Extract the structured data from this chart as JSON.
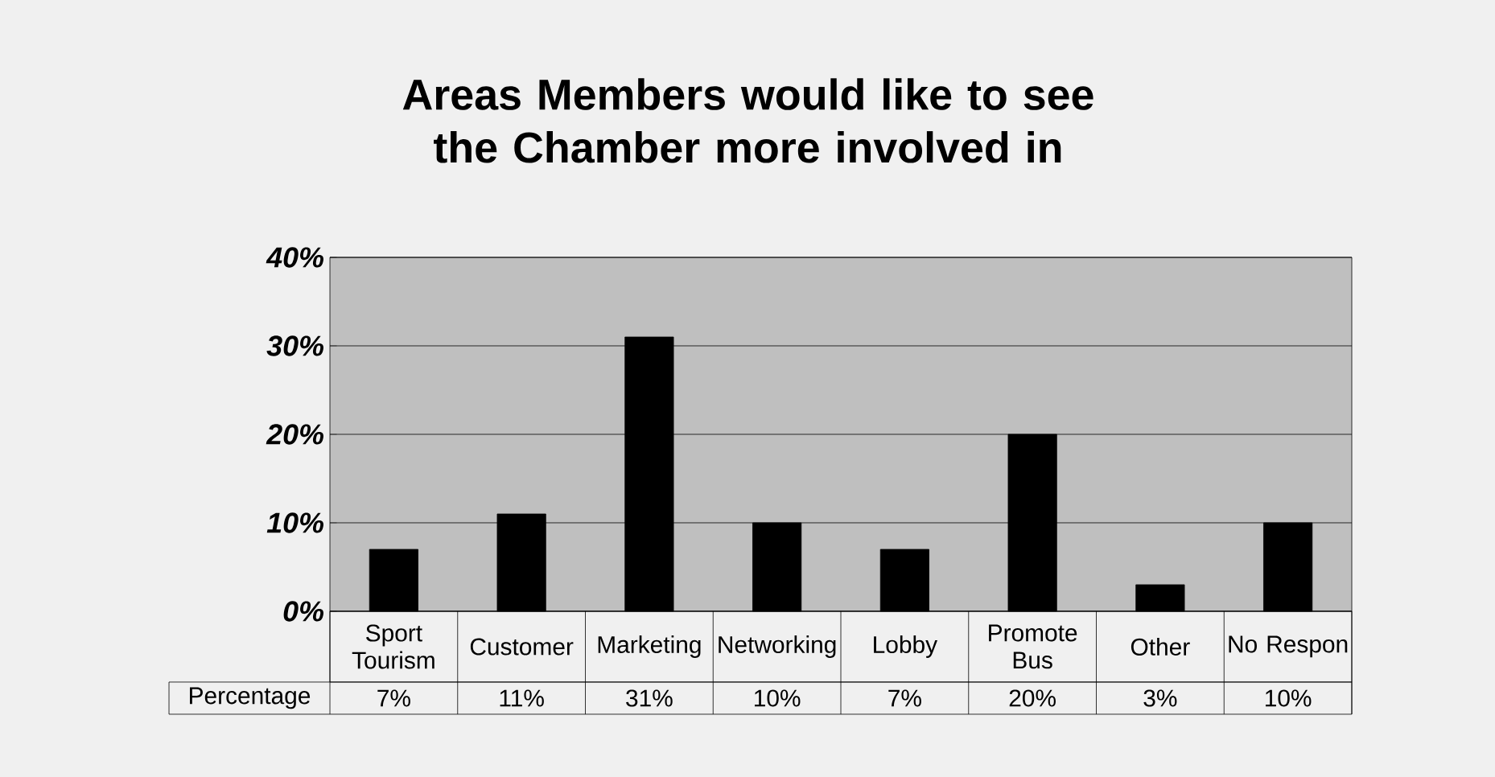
{
  "chart_data": {
    "type": "bar",
    "title": "Areas Members would like to see the Chamber more involved in",
    "categories": [
      "Sport Tourism",
      "Customer",
      "Marketing",
      "Networking",
      "Lobby",
      "Promote Bus",
      "Other",
      "No Respon"
    ],
    "series": [
      {
        "name": "Percentage",
        "color": "#000000",
        "values": [
          7,
          11,
          31,
          10,
          7,
          20,
          3,
          10
        ],
        "value_labels": [
          "7%",
          "11%",
          "31%",
          "10%",
          "7%",
          "20%",
          "3%",
          "10%"
        ]
      }
    ],
    "ylim": [
      0,
      40
    ],
    "yticks": [
      {
        "value": 0,
        "label": "0%"
      },
      {
        "value": 10,
        "label": "10%"
      },
      {
        "value": 20,
        "label": "20%"
      },
      {
        "value": 30,
        "label": "30%"
      },
      {
        "value": 40,
        "label": "40%"
      }
    ],
    "grid": "y"
  }
}
